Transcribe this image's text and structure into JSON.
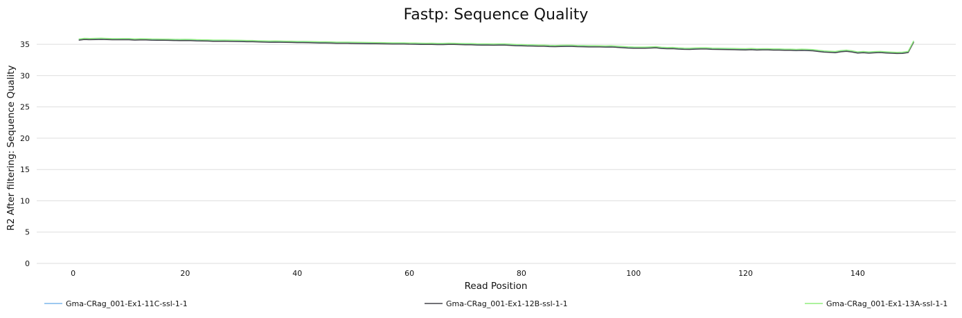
{
  "chart_data": {
    "type": "line",
    "title": "Fastp: Sequence Quality",
    "xlabel": "Read Position",
    "ylabel": "R2 After filtering: Sequence Quality",
    "xlim": [
      -6.5,
      157.5
    ],
    "ylim": [
      0,
      37
    ],
    "xticks": [
      0,
      20,
      40,
      60,
      80,
      100,
      120,
      140
    ],
    "yticks": [
      0,
      5,
      10,
      15,
      20,
      25,
      30,
      35
    ],
    "grid": true,
    "legend_position": "bottom",
    "x": [
      1,
      2,
      3,
      4,
      5,
      6,
      7,
      8,
      9,
      10,
      11,
      12,
      13,
      14,
      15,
      16,
      17,
      18,
      19,
      20,
      21,
      22,
      23,
      24,
      25,
      26,
      27,
      28,
      29,
      30,
      31,
      32,
      33,
      34,
      35,
      36,
      37,
      38,
      39,
      40,
      41,
      42,
      43,
      44,
      45,
      46,
      47,
      48,
      49,
      50,
      51,
      52,
      53,
      54,
      55,
      56,
      57,
      58,
      59,
      60,
      61,
      62,
      63,
      64,
      65,
      66,
      67,
      68,
      69,
      70,
      71,
      72,
      73,
      74,
      75,
      76,
      77,
      78,
      79,
      80,
      81,
      82,
      83,
      84,
      85,
      86,
      87,
      88,
      89,
      90,
      91,
      92,
      93,
      94,
      95,
      96,
      97,
      98,
      99,
      100,
      101,
      102,
      103,
      104,
      105,
      106,
      107,
      108,
      109,
      110,
      111,
      112,
      113,
      114,
      115,
      116,
      117,
      118,
      119,
      120,
      121,
      122,
      123,
      124,
      125,
      126,
      127,
      128,
      129,
      130,
      131,
      132,
      133,
      134,
      135,
      136,
      137,
      138,
      139,
      140,
      141,
      142,
      143,
      144,
      145,
      146,
      147,
      148,
      149,
      150
    ],
    "series": [
      {
        "name": "Gma-CRag_001-Ex1-11C-ssl-1-1",
        "color": "#7cb5ec",
        "values": [
          35.8,
          35.91,
          35.89,
          35.91,
          35.94,
          35.9,
          35.87,
          35.87,
          35.88,
          35.88,
          35.82,
          35.85,
          35.84,
          35.81,
          35.8,
          35.79,
          35.78,
          35.76,
          35.74,
          35.76,
          35.74,
          35.7,
          35.68,
          35.67,
          35.63,
          35.63,
          35.64,
          35.62,
          35.6,
          35.59,
          35.56,
          35.56,
          35.53,
          35.51,
          35.48,
          35.49,
          35.48,
          35.46,
          35.45,
          35.43,
          35.43,
          35.41,
          35.38,
          35.36,
          35.36,
          35.34,
          35.31,
          35.31,
          35.31,
          35.29,
          35.27,
          35.26,
          35.25,
          35.24,
          35.23,
          35.21,
          35.2,
          35.2,
          35.2,
          35.17,
          35.16,
          35.14,
          35.13,
          35.14,
          35.11,
          35.11,
          35.14,
          35.13,
          35.1,
          35.08,
          35.08,
          35.04,
          35.02,
          35.02,
          35.01,
          35.02,
          35.02,
          34.98,
          34.93,
          34.92,
          34.88,
          34.87,
          34.84,
          34.84,
          34.79,
          34.77,
          34.8,
          34.82,
          34.82,
          34.77,
          34.76,
          34.74,
          34.74,
          34.73,
          34.7,
          34.72,
          34.67,
          34.61,
          34.56,
          34.53,
          34.52,
          34.52,
          34.55,
          34.59,
          34.49,
          34.45,
          34.46,
          34.39,
          34.35,
          34.33,
          34.38,
          34.4,
          34.4,
          34.35,
          34.34,
          34.32,
          34.31,
          34.29,
          34.27,
          34.25,
          34.29,
          34.24,
          34.26,
          34.26,
          34.23,
          34.22,
          34.19,
          34.19,
          34.15,
          34.18,
          34.16,
          34.11,
          34.0,
          33.91,
          33.86,
          33.81,
          33.96,
          34.03,
          33.92,
          33.75,
          33.81,
          33.74,
          33.8,
          33.83,
          33.77,
          33.72,
          33.68,
          33.7,
          33.83,
          35.52
        ]
      },
      {
        "name": "Gma-CRag_001-Ex1-12B-ssl-1-1",
        "color": "#434348",
        "values": [
          35.66,
          35.77,
          35.74,
          35.76,
          35.79,
          35.76,
          35.73,
          35.73,
          35.73,
          35.73,
          35.67,
          35.7,
          35.7,
          35.66,
          35.65,
          35.64,
          35.63,
          35.61,
          35.59,
          35.61,
          35.59,
          35.55,
          35.53,
          35.52,
          35.48,
          35.48,
          35.49,
          35.47,
          35.45,
          35.44,
          35.41,
          35.41,
          35.38,
          35.36,
          35.33,
          35.34,
          35.33,
          35.31,
          35.3,
          35.28,
          35.28,
          35.26,
          35.23,
          35.21,
          35.21,
          35.19,
          35.16,
          35.16,
          35.16,
          35.14,
          35.12,
          35.11,
          35.1,
          35.09,
          35.08,
          35.06,
          35.05,
          35.05,
          35.05,
          35.02,
          35.01,
          34.99,
          34.98,
          34.99,
          34.96,
          34.96,
          34.99,
          34.98,
          34.95,
          34.93,
          34.93,
          34.89,
          34.87,
          34.87,
          34.86,
          34.87,
          34.87,
          34.83,
          34.78,
          34.77,
          34.73,
          34.72,
          34.69,
          34.69,
          34.64,
          34.62,
          34.65,
          34.67,
          34.67,
          34.62,
          34.61,
          34.59,
          34.59,
          34.58,
          34.55,
          34.57,
          34.52,
          34.46,
          34.41,
          34.38,
          34.37,
          34.37,
          34.4,
          34.44,
          34.34,
          34.3,
          34.31,
          34.24,
          34.2,
          34.18,
          34.23,
          34.25,
          34.25,
          34.2,
          34.19,
          34.17,
          34.16,
          34.14,
          34.12,
          34.1,
          34.14,
          34.09,
          34.11,
          34.11,
          34.08,
          34.07,
          34.04,
          34.04,
          34.0,
          34.03,
          34.01,
          33.96,
          33.85,
          33.76,
          33.71,
          33.66,
          33.81,
          33.88,
          33.77,
          33.6,
          33.66,
          33.59,
          33.65,
          33.68,
          33.62,
          33.57,
          33.53,
          33.55,
          33.68,
          35.37
        ]
      },
      {
        "name": "Gma-CRag_001-Ex1-13A-ssl-1-1",
        "color": "#90ed7d",
        "values": [
          35.84,
          35.95,
          35.93,
          35.95,
          35.98,
          35.94,
          35.91,
          35.91,
          35.92,
          35.92,
          35.86,
          35.89,
          35.88,
          35.85,
          35.84,
          35.83,
          35.82,
          35.8,
          35.78,
          35.8,
          35.78,
          35.74,
          35.72,
          35.71,
          35.67,
          35.67,
          35.68,
          35.66,
          35.64,
          35.63,
          35.6,
          35.6,
          35.57,
          35.55,
          35.52,
          35.53,
          35.52,
          35.5,
          35.49,
          35.47,
          35.47,
          35.45,
          35.42,
          35.4,
          35.4,
          35.38,
          35.35,
          35.35,
          35.35,
          35.33,
          35.31,
          35.3,
          35.29,
          35.28,
          35.27,
          35.25,
          35.24,
          35.24,
          35.24,
          35.21,
          35.2,
          35.18,
          35.17,
          35.18,
          35.15,
          35.15,
          35.18,
          35.17,
          35.14,
          35.12,
          35.12,
          35.08,
          35.06,
          35.06,
          35.05,
          35.06,
          35.06,
          35.02,
          34.97,
          34.96,
          34.92,
          34.91,
          34.88,
          34.88,
          34.83,
          34.81,
          34.84,
          34.86,
          34.86,
          34.81,
          34.8,
          34.78,
          34.78,
          34.77,
          34.74,
          34.76,
          34.71,
          34.65,
          34.6,
          34.57,
          34.56,
          34.56,
          34.59,
          34.63,
          34.53,
          34.49,
          34.5,
          34.43,
          34.39,
          34.37,
          34.42,
          34.44,
          34.44,
          34.39,
          34.38,
          34.36,
          34.35,
          34.33,
          34.31,
          34.29,
          34.33,
          34.28,
          34.3,
          34.3,
          34.27,
          34.26,
          34.23,
          34.23,
          34.19,
          34.22,
          34.2,
          34.15,
          34.04,
          33.95,
          33.9,
          33.85,
          34.0,
          34.07,
          33.96,
          33.79,
          33.85,
          33.78,
          33.84,
          33.87,
          33.81,
          33.76,
          33.72,
          33.74,
          33.87,
          35.56
        ]
      }
    ]
  }
}
